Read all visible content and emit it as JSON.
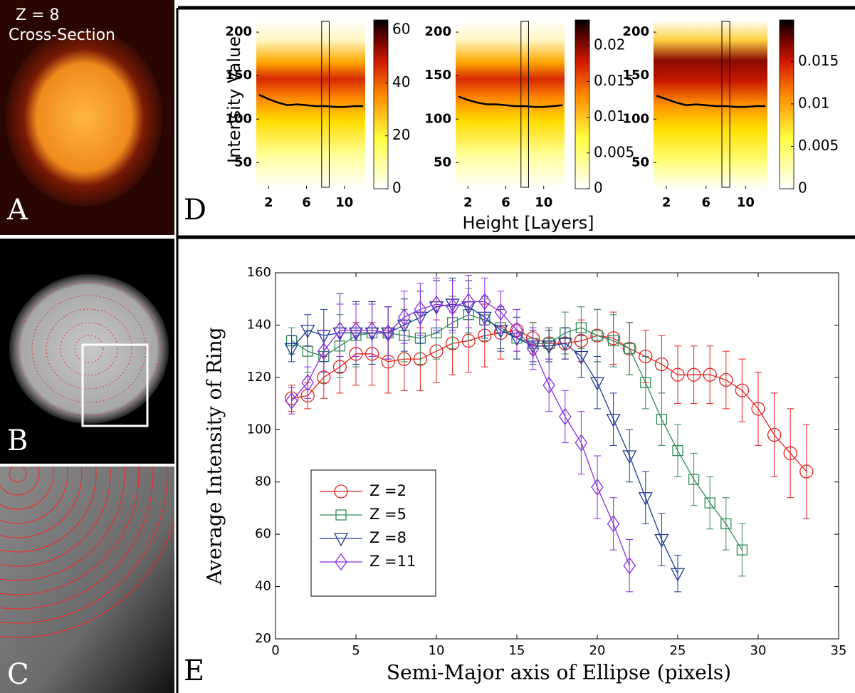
{
  "labels": {
    "a": "A",
    "b": "B",
    "c": "C",
    "d": "D",
    "e": "E"
  },
  "panel_a": {
    "z_label": "Z =  8",
    "caption": "Cross-Section"
  },
  "panel_d": {
    "ylabel": "Intensity Value",
    "xlabel": "Height [Layers]",
    "plots": [
      {
        "ylim": [
          20,
          214
        ],
        "yticks": [
          50,
          100,
          150,
          200
        ],
        "xlim": [
          0.7,
          12.2
        ],
        "xticks": [
          2,
          6,
          10
        ],
        "clim": [
          0,
          63.8
        ],
        "cticks": [
          0,
          20,
          40,
          60
        ],
        "mean_x": [
          1,
          2,
          3,
          4,
          5,
          6,
          7,
          8,
          9,
          10,
          11,
          12
        ],
        "mean_y": [
          128,
          123,
          119,
          116,
          117,
          116,
          115,
          115,
          114,
          114,
          115,
          115
        ]
      },
      {
        "ylim": [
          20,
          214
        ],
        "yticks": [
          50,
          100,
          150,
          200
        ],
        "xlim": [
          0.7,
          12.2
        ],
        "xticks": [
          2,
          6,
          10
        ],
        "clim": [
          0,
          0.0236
        ],
        "cticks": [
          0,
          0.005,
          0.01,
          0.015,
          0.02
        ],
        "mean_x": [
          1,
          2,
          3,
          4,
          5,
          6,
          7,
          8,
          9,
          10,
          11,
          12
        ],
        "mean_y": [
          126,
          122,
          119,
          117,
          117,
          116,
          115,
          115,
          114,
          114,
          115,
          116
        ]
      },
      {
        "ylim": [
          20,
          214
        ],
        "yticks": [
          50,
          100,
          150,
          200
        ],
        "xlim": [
          0.7,
          12.2
        ],
        "xticks": [
          2,
          6,
          10
        ],
        "clim": [
          0,
          0.0199
        ],
        "cticks": [
          0,
          0.005,
          0.01,
          0.015
        ],
        "mean_x": [
          1,
          2,
          3,
          4,
          5,
          6,
          7,
          8,
          9,
          10,
          11,
          12
        ],
        "mean_y": [
          127,
          123,
          119,
          116,
          117,
          116,
          115,
          115,
          114,
          114,
          115,
          115
        ]
      }
    ]
  },
  "chart_data": {
    "type": "line",
    "xlabel": "Semi-Major axis of Ellipse (pixels)",
    "ylabel": "Average Intensity of Ring",
    "xlim": [
      0,
      35
    ],
    "ylim": [
      20,
      160
    ],
    "xticks": [
      0,
      5,
      10,
      15,
      20,
      25,
      30,
      35
    ],
    "yticks": [
      20,
      40,
      60,
      80,
      100,
      120,
      140,
      160
    ],
    "legend": "left",
    "series": [
      {
        "name": "Z =2",
        "color": "#e8211c",
        "marker": "circle",
        "x": [
          1,
          2,
          3,
          4,
          5,
          6,
          7,
          8,
          9,
          10,
          11,
          12,
          13,
          14,
          15,
          16,
          17,
          18,
          19,
          20,
          21,
          22,
          23,
          24,
          25,
          26,
          27,
          28,
          29,
          30,
          31,
          32,
          33
        ],
        "values": [
          112,
          113,
          120,
          124,
          129,
          129,
          126,
          127,
          127,
          130,
          133,
          134,
          136,
          137,
          138,
          135,
          133,
          133,
          134,
          136,
          135,
          131,
          128,
          125,
          121,
          121,
          121,
          119,
          115,
          108,
          98,
          91,
          84
        ],
        "errors": [
          5,
          5,
          8,
          10,
          12,
          12,
          12,
          12,
          12,
          12,
          12,
          12,
          12,
          10,
          8,
          6,
          6,
          6,
          8,
          10,
          10,
          10,
          10,
          11,
          11,
          11,
          11,
          11,
          12,
          14,
          16,
          17,
          18
        ]
      },
      {
        "name": "Z =5",
        "color": "#2e8b57",
        "marker": "square",
        "x": [
          1,
          2,
          3,
          4,
          5,
          6,
          7,
          8,
          9,
          10,
          11,
          12,
          13,
          14,
          15,
          16,
          17,
          18,
          19,
          20,
          21,
          22,
          23,
          24,
          25,
          26,
          27,
          28,
          29
        ],
        "values": [
          134,
          130,
          128,
          132,
          136,
          137,
          137,
          136,
          135,
          137,
          141,
          144,
          142,
          139,
          135,
          133,
          133,
          137,
          139,
          136,
          134,
          131,
          118,
          104,
          92,
          81,
          72,
          64,
          54
        ],
        "errors": [
          5,
          8,
          10,
          12,
          12,
          12,
          10,
          10,
          10,
          10,
          10,
          10,
          8,
          8,
          8,
          8,
          6,
          8,
          8,
          10,
          10,
          10,
          10,
          10,
          10,
          10,
          10,
          10,
          10
        ]
      },
      {
        "name": "Z =8",
        "color": "#1c3a96",
        "marker": "triangle",
        "x": [
          1,
          2,
          3,
          4,
          5,
          6,
          7,
          8,
          9,
          10,
          11,
          12,
          13,
          14,
          15,
          16,
          17,
          18,
          19,
          20,
          21,
          22,
          23,
          24,
          25
        ],
        "values": [
          131,
          138,
          136,
          137,
          137,
          137,
          137,
          140,
          143,
          147,
          148,
          147,
          143,
          138,
          135,
          132,
          132,
          133,
          128,
          118,
          104,
          90,
          74,
          58,
          45
        ],
        "errors": [
          5,
          6,
          10,
          15,
          12,
          12,
          10,
          10,
          10,
          10,
          10,
          10,
          8,
          8,
          8,
          6,
          6,
          6,
          8,
          10,
          10,
          10,
          10,
          10,
          7
        ]
      },
      {
        "name": "Z =11",
        "color": "#8a2be2",
        "marker": "diamond",
        "x": [
          1,
          2,
          3,
          4,
          5,
          6,
          7,
          8,
          9,
          10,
          11,
          12,
          13,
          14,
          15,
          16,
          17,
          18,
          19,
          20,
          21,
          22
        ],
        "values": [
          111,
          118,
          130,
          138,
          138,
          138,
          137,
          143,
          146,
          148,
          147,
          149,
          149,
          145,
          138,
          131,
          117,
          105,
          95,
          78,
          64,
          48
        ],
        "errors": [
          5,
          6,
          8,
          10,
          10,
          10,
          10,
          10,
          10,
          10,
          10,
          10,
          9,
          8,
          8,
          8,
          10,
          10,
          12,
          12,
          10,
          10
        ]
      }
    ]
  }
}
